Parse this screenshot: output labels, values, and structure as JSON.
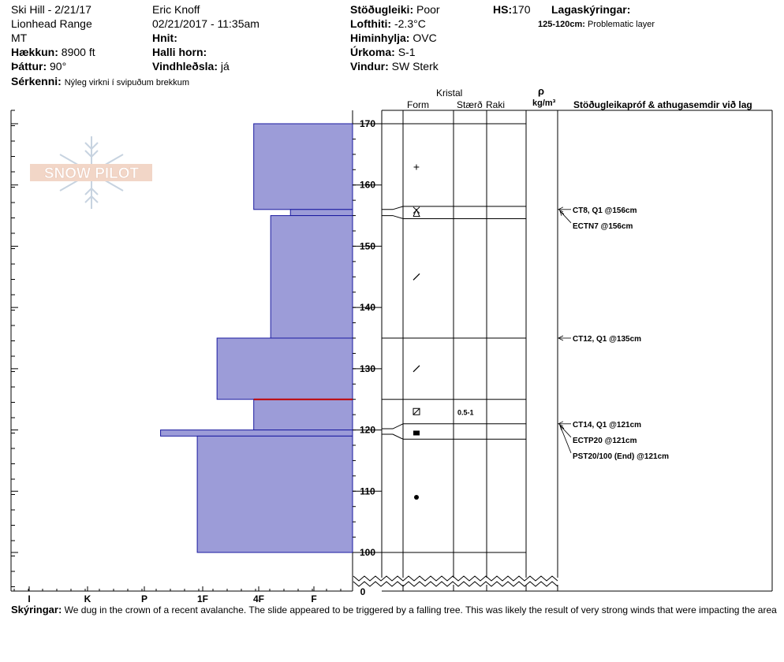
{
  "header": {
    "col1": {
      "title": "Ski Hill - 2/21/17",
      "range": "Lionhead Range",
      "state": "MT",
      "elevation_label": "Hækkun:",
      "elevation": "8900 ft",
      "aspect_label": "Þáttur:",
      "aspect": "90°",
      "features_label": "Sérkenni:",
      "features": "Nýleg virkni í svipuðum brekkum"
    },
    "col2": {
      "observer": "Eric Knoff",
      "datetime": "02/21/2017 - 11:35am",
      "coords_label": "Hnit:",
      "coords": "",
      "slope_label": "Halli horn:",
      "slope": "",
      "wind_loading_label": "Vindhleðsla:",
      "wind_loading": "já"
    },
    "col3": {
      "stability_label": "Stöðugleiki:",
      "stability": "Poor",
      "air_temp_label": "Lofthiti:",
      "air_temp": "-2.3°C",
      "sky_label": "Himinhylja:",
      "sky": "OVC",
      "precip_label": "Úrkoma:",
      "precip": "S-1",
      "wind_label": "Vindur:",
      "wind": "SW Sterk"
    },
    "col4": {
      "hs_label": "HS:",
      "hs": "170",
      "layer_notes_label": "Lagaskýringar:",
      "layer_note_range": "125-120cm:",
      "layer_note_text": "Problematic layer"
    }
  },
  "logo": {
    "text": "SNOW PILOT"
  },
  "columns": {
    "crystal": "Kristal",
    "form": "Form",
    "size": "Stærð",
    "moisture": "Raki",
    "rho": "ρ",
    "density_unit": "kg/m³",
    "tests": "Stöðugleikapróf & athugasemdir við lag"
  },
  "chart_data": {
    "type": "bar",
    "orientation": "horizontal",
    "ylim": [
      100,
      170
    ],
    "y_break_value": "0",
    "y_ticks": [
      100,
      110,
      120,
      130,
      140,
      150,
      160,
      170
    ],
    "hardness_scale": [
      "I",
      "K",
      "P",
      "1F",
      "4F",
      "F"
    ],
    "layers": [
      {
        "top": 170,
        "bottom": 156,
        "hardness": 1.75
      },
      {
        "top": 156,
        "bottom": 155,
        "hardness": 1.1
      },
      {
        "top": 155,
        "bottom": 135,
        "hardness": 1.45
      },
      {
        "top": 135,
        "bottom": 125,
        "hardness": 2.4
      },
      {
        "top": 125,
        "bottom": 120,
        "hardness": 1.75
      },
      {
        "top": 120,
        "bottom": 119,
        "hardness": 3.4
      },
      {
        "top": 119,
        "bottom": 100,
        "hardness": 2.75
      }
    ],
    "problem_line": 125,
    "boundaries": [
      170,
      156.5,
      154.5,
      135,
      125,
      121,
      118.5,
      100
    ],
    "grains": [
      {
        "y": 163,
        "symbol": "+",
        "size": ""
      },
      {
        "y": 155.5,
        "symbol": "hoar",
        "size": ""
      },
      {
        "y": 145,
        "symbol": "/",
        "size": ""
      },
      {
        "y": 130,
        "symbol": "/",
        "size": ""
      },
      {
        "y": 123,
        "symbol": "faceted",
        "size": "0.5-1"
      },
      {
        "y": 119.5,
        "symbol": "square",
        "size": ""
      },
      {
        "y": 109,
        "symbol": "dot",
        "size": ""
      }
    ],
    "tests": [
      {
        "text": "CT8, Q1 @156cm",
        "depth": 156
      },
      {
        "text": "ECTN7 @156cm",
        "depth": 156
      },
      {
        "text": "CT12, Q1 @135cm",
        "depth": 135
      },
      {
        "text": "CT14, Q1 @121cm",
        "depth": 121
      },
      {
        "text": "ECTP20 @121cm",
        "depth": 121
      },
      {
        "text": "PST20/100 (End) @121cm",
        "depth": 121
      }
    ]
  },
  "footer": {
    "label": "Skýringar:",
    "text": "We dug in the crown of a recent avalanche. The slide appeared to be triggered by a falling tree. This was likely the result of very strong winds that were impacting the area"
  }
}
